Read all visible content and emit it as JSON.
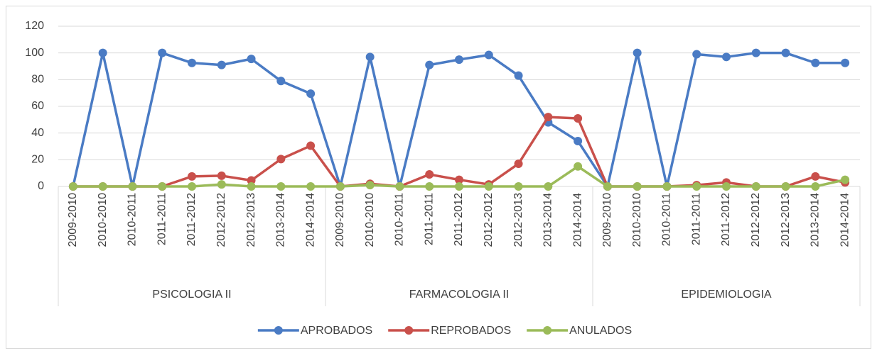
{
  "chart_data": {
    "type": "line",
    "category_groups": [
      {
        "label": "PSICOLOGIA II",
        "categories": [
          "2009-2010",
          "2010-2010",
          "2010-2011",
          "2011-2011",
          "2011-2012",
          "2012-2012",
          "2012-2013",
          "2013-2014",
          "2014-2014"
        ]
      },
      {
        "label": "FARMACOLOGIA II",
        "categories": [
          "2009-2010",
          "2010-2010",
          "2010-2011",
          "2011-2011",
          "2011-2012",
          "2012-2012",
          "2012-2013",
          "2013-2014",
          "2014-2014"
        ]
      },
      {
        "label": "EPIDEMIOLOGIA",
        "categories": [
          "2009-2010",
          "2010-2010",
          "2010-2011",
          "2011-2011",
          "2011-2012",
          "2012-2012",
          "2012-2013",
          "2013-2014",
          "2014-2014"
        ]
      }
    ],
    "series": [
      {
        "name": "APROBADOS",
        "color": "#4a7bc4",
        "values": [
          0,
          100,
          0,
          100,
          92.5,
          91,
          95.5,
          79,
          69.5,
          0,
          97,
          0,
          91,
          95,
          98.5,
          83,
          48,
          34,
          0,
          100,
          0,
          99,
          97,
          100,
          100,
          92.5,
          92.5
        ]
      },
      {
        "name": "REPROBADOS",
        "color": "#c9504b",
        "values": [
          0,
          0,
          0,
          0,
          7.5,
          8,
          4.5,
          20.5,
          30.5,
          0,
          2,
          0,
          9,
          5,
          1.5,
          17,
          52,
          51,
          0,
          0,
          0,
          1,
          3,
          0,
          0,
          7.5,
          3
        ]
      },
      {
        "name": "ANULADOS",
        "color": "#9bbb59",
        "values": [
          0,
          0,
          0,
          0,
          0,
          1.5,
          0,
          0,
          0,
          0,
          1,
          0,
          0,
          0,
          0,
          0,
          0,
          15,
          0,
          0,
          0,
          0,
          0,
          0,
          0,
          0,
          5
        ]
      }
    ],
    "ylim": [
      0,
      120
    ],
    "yticks": [
      0,
      20,
      40,
      60,
      80,
      100,
      120
    ],
    "grid": true,
    "legend": "bottom"
  }
}
